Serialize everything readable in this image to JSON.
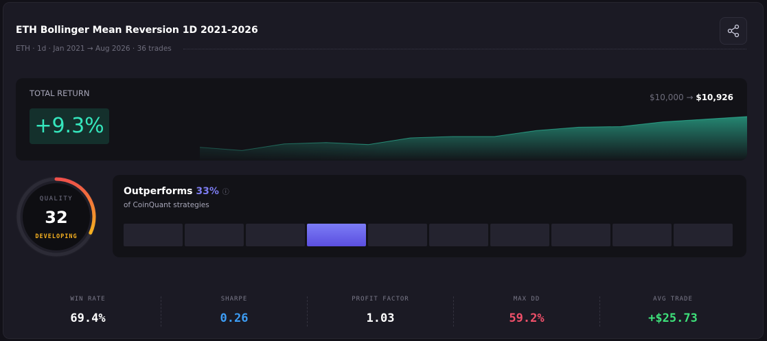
{
  "header": {
    "title": "ETH Bollinger Mean Reversion 1D 2021-2026",
    "subtitle": "ETH · 1d · Jan 2021 → Aug 2026 · 36 trades"
  },
  "total_return": {
    "label": "TOTAL RETURN",
    "value": "+9.3%",
    "start": "$10,000",
    "arrow": "→",
    "end": "$10,926",
    "equity_curve": {
      "values": [
        10000,
        9900,
        10100,
        10140,
        10080,
        10280,
        10320,
        10320,
        10500,
        10600,
        10620,
        10760,
        10840,
        10920
      ],
      "ylim": [
        9600,
        11000
      ],
      "color": "#35e6bd"
    }
  },
  "quality": {
    "label": "QUALITY",
    "score": 32,
    "max": 100,
    "rating": "DEVELOPING"
  },
  "outperforms": {
    "title": "Outperforms",
    "value": "33%",
    "subtitle": "of CoinQuant strategies"
  },
  "metrics": [
    {
      "label": "WIN RATE",
      "value": "69.4%",
      "color": "#ffffff"
    },
    {
      "label": "SHARPE",
      "value": "0.26",
      "color": "#3d9df5"
    },
    {
      "label": "PROFIT FACTOR",
      "value": "1.03",
      "color": "#ffffff"
    },
    {
      "label": "MAX DD",
      "value": "59.2%",
      "color": "#f0506a"
    },
    {
      "label": "AVG TRADE",
      "value": "+$25.73",
      "color": "#3ee07a"
    }
  ]
}
